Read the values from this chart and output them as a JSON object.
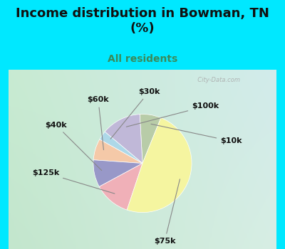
{
  "title": "Income distribution in Bowman, TN\n(%)",
  "subtitle": "All residents",
  "labels": [
    "$10k",
    "$100k",
    "$30k",
    "$60k",
    "$40k",
    "$125k",
    "$75k"
  ],
  "sizes": [
    7,
    13,
    3,
    7,
    9,
    12,
    49
  ],
  "colors": [
    "#b8cca8",
    "#c0b8d8",
    "#add8e8",
    "#f5c9a8",
    "#9898c8",
    "#f0b0b8",
    "#f5f5a0"
  ],
  "bg_top": "#00e8ff",
  "bg_chart_topleft": "#c8e8d0",
  "bg_chart_topright": "#d8e8e8",
  "bg_chart_bottomleft": "#d0e8c8",
  "bg_chart_bottomright": "#c8e0d8",
  "title_color": "#111111",
  "subtitle_color": "#3a8a5a",
  "title_fontsize": 13,
  "subtitle_fontsize": 10,
  "watermark": "  City-Data.com",
  "label_fontsize": 8,
  "startangle": 68
}
